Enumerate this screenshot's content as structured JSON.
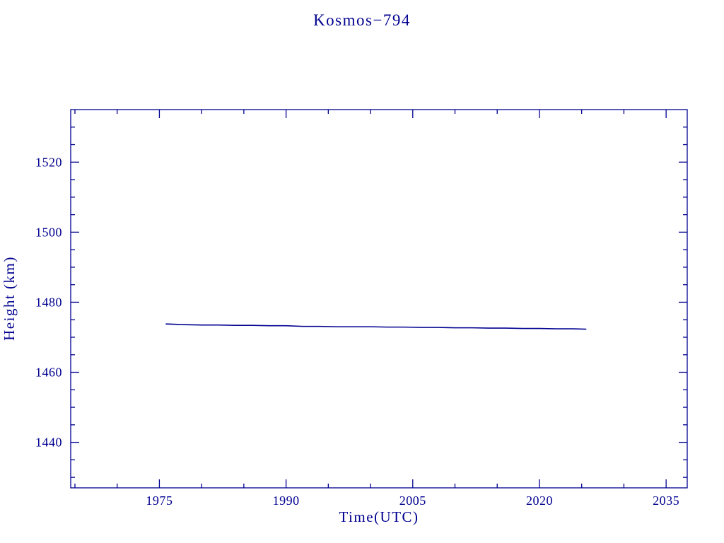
{
  "page": {
    "title": "Kosmos−794"
  },
  "chart_data": {
    "type": "line",
    "title": "Kosmos−794",
    "xlabel": "Time(UTC)",
    "ylabel": "Height (km)",
    "xlim": [
      1964.5,
      2037.5
    ],
    "ylim": [
      1427,
      1535
    ],
    "xticks": [
      1975,
      1990,
      2005,
      2020,
      2035
    ],
    "yticks": [
      1440,
      1460,
      1480,
      1500,
      1520
    ],
    "x_minor_step": 5,
    "y_minor_step": 5,
    "grid": false,
    "legend": false,
    "color": "#000090",
    "series": [
      {
        "name": "height",
        "x": [
          1975.8,
          1978,
          1980,
          1982,
          1984,
          1986,
          1988,
          1990,
          1992,
          1994,
          1996,
          1998,
          2000,
          2002,
          2004,
          2006,
          2008,
          2010,
          2012,
          2014,
          2016,
          2018,
          2020,
          2022,
          2024,
          2025.5
        ],
        "y": [
          1473.8,
          1473.6,
          1473.5,
          1473.5,
          1473.4,
          1473.4,
          1473.3,
          1473.3,
          1473.1,
          1473.1,
          1473.0,
          1473.0,
          1473.0,
          1472.9,
          1472.9,
          1472.8,
          1472.8,
          1472.7,
          1472.7,
          1472.6,
          1472.6,
          1472.5,
          1472.5,
          1472.4,
          1472.4,
          1472.3
        ]
      }
    ]
  }
}
